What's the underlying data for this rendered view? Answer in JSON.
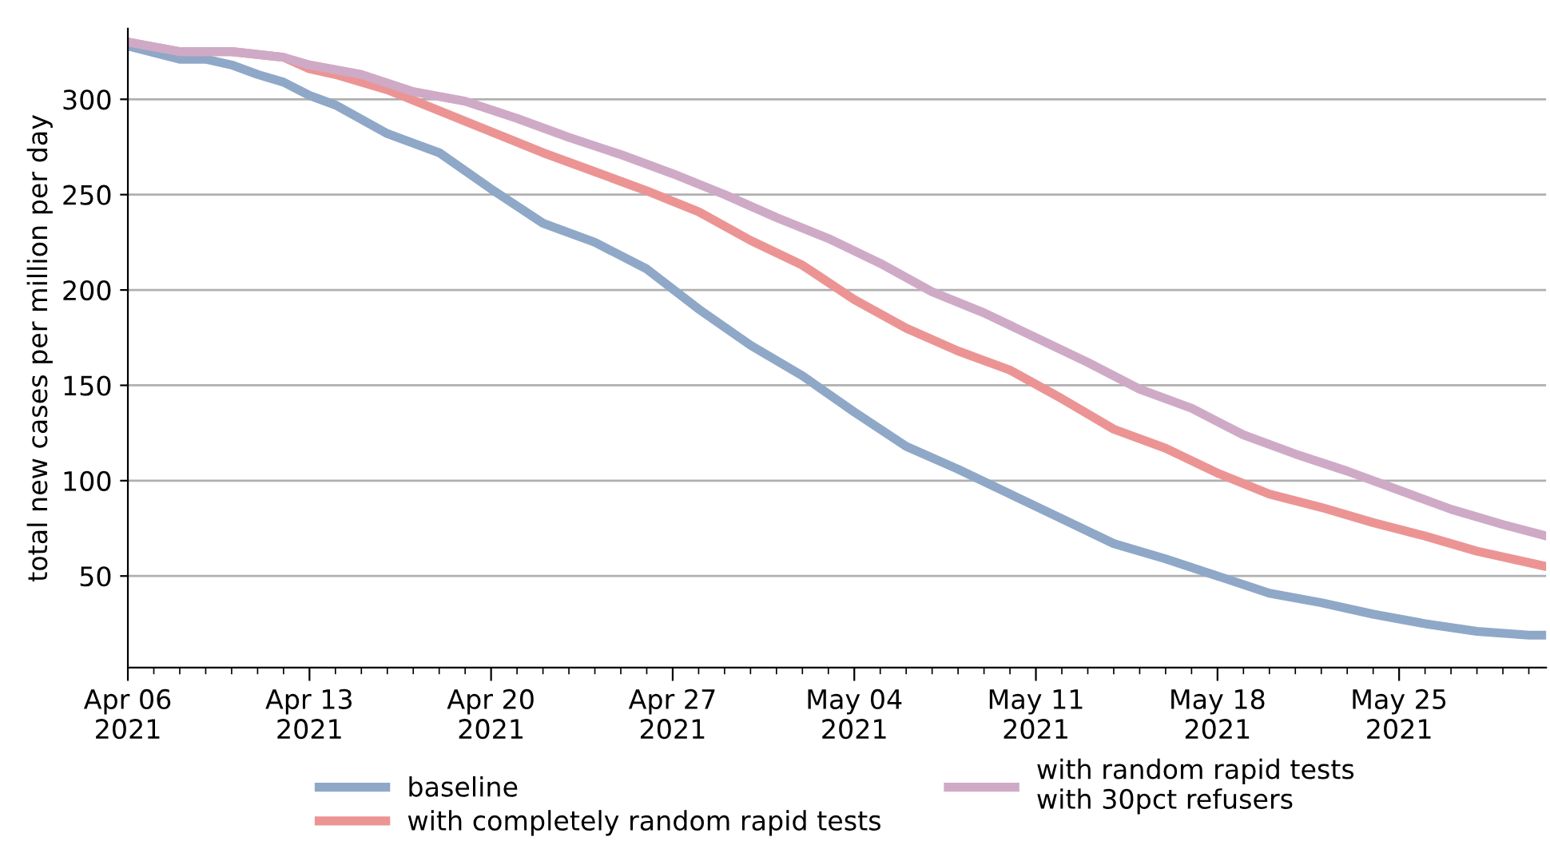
{
  "chart_data": {
    "type": "line",
    "ylabel": "total new cases per million per day",
    "series": [
      {
        "name": "baseline",
        "color": "#8fa8c8",
        "x": [
          "2021-04-06",
          "2021-04-08",
          "2021-04-09",
          "2021-04-10",
          "2021-04-11",
          "2021-04-12",
          "2021-04-13",
          "2021-04-14",
          "2021-04-16",
          "2021-04-18",
          "2021-04-20",
          "2021-04-22",
          "2021-04-24",
          "2021-04-26",
          "2021-04-28",
          "2021-04-30",
          "2021-05-02",
          "2021-05-04",
          "2021-05-06",
          "2021-05-08",
          "2021-05-10",
          "2021-05-12",
          "2021-05-14",
          "2021-05-16",
          "2021-05-18",
          "2021-05-20",
          "2021-05-22",
          "2021-05-24",
          "2021-05-26",
          "2021-05-28",
          "2021-05-30",
          "2021-05-30T16:00"
        ],
        "values": [
          328,
          321,
          321,
          318,
          313,
          309,
          302,
          297,
          282,
          272,
          253,
          235,
          225,
          211,
          190,
          171,
          155,
          136,
          118,
          106,
          93,
          80,
          67,
          59,
          50,
          41,
          36,
          30,
          25,
          21,
          19,
          19
        ]
      },
      {
        "name": "with completely random rapid tests",
        "color": "#ec9494",
        "x": [
          "2021-04-06",
          "2021-04-08",
          "2021-04-10",
          "2021-04-12",
          "2021-04-13",
          "2021-04-14",
          "2021-04-16",
          "2021-04-18",
          "2021-04-20",
          "2021-04-22",
          "2021-04-24",
          "2021-04-26",
          "2021-04-28",
          "2021-04-30",
          "2021-05-02",
          "2021-05-04",
          "2021-05-06",
          "2021-05-08",
          "2021-05-10",
          "2021-05-12",
          "2021-05-14",
          "2021-05-16",
          "2021-05-18",
          "2021-05-20",
          "2021-05-22",
          "2021-05-24",
          "2021-05-26",
          "2021-05-28",
          "2021-05-30",
          "2021-05-30T16:00"
        ],
        "values": [
          330,
          325,
          325,
          322,
          316,
          313,
          305,
          294,
          283,
          272,
          262,
          252,
          241,
          226,
          213,
          195,
          180,
          168,
          158,
          143,
          127,
          117,
          104,
          93,
          86,
          78,
          71,
          63,
          57,
          55
        ]
      },
      {
        "name": "with random rapid tests\nwith 30pct refusers",
        "color": "#cfaac6",
        "x": [
          "2021-04-06",
          "2021-04-08",
          "2021-04-10",
          "2021-04-12",
          "2021-04-13",
          "2021-04-15",
          "2021-04-17",
          "2021-04-19",
          "2021-04-21",
          "2021-04-23",
          "2021-04-25",
          "2021-04-27",
          "2021-04-29",
          "2021-05-01",
          "2021-05-03",
          "2021-05-05",
          "2021-05-07",
          "2021-05-09",
          "2021-05-11",
          "2021-05-13",
          "2021-05-15",
          "2021-05-17",
          "2021-05-19",
          "2021-05-21",
          "2021-05-23",
          "2021-05-25",
          "2021-05-27",
          "2021-05-29",
          "2021-05-30T16:00"
        ],
        "values": [
          330,
          325,
          325,
          322,
          318,
          313,
          304,
          299,
          290,
          280,
          271,
          261,
          250,
          238,
          227,
          214,
          199,
          188,
          175,
          162,
          148,
          138,
          124,
          114,
          105,
          95,
          85,
          77,
          71
        ]
      }
    ],
    "xlim": [
      "2021-04-06",
      "2021-05-30T16:00"
    ],
    "xticks": [
      {
        "value": "2021-04-06",
        "label": "Apr 06\n2021"
      },
      {
        "value": "2021-04-13",
        "label": "Apr 13\n2021"
      },
      {
        "value": "2021-04-20",
        "label": "Apr 20\n2021"
      },
      {
        "value": "2021-04-27",
        "label": "Apr 27\n2021"
      },
      {
        "value": "2021-05-04",
        "label": "May 04\n2021"
      },
      {
        "value": "2021-05-11",
        "label": "May 11\n2021"
      },
      {
        "value": "2021-05-18",
        "label": "May 18\n2021"
      },
      {
        "value": "2021-05-25",
        "label": "May 25\n2021"
      }
    ],
    "ylim": [
      2,
      337
    ],
    "yticks": [
      50,
      100,
      150,
      200,
      250,
      300
    ],
    "grid": "y",
    "legend": "bottom",
    "marker": "none",
    "line_style": "solid"
  }
}
